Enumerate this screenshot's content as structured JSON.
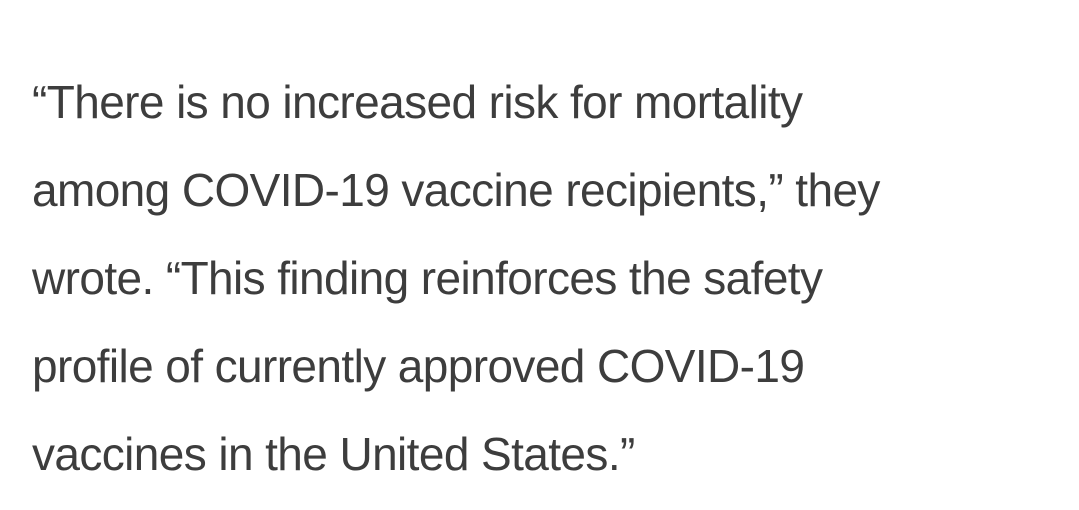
{
  "article": {
    "quote_lines": [
      "“There is no increased risk for mortality",
      "among COVID-19 vaccine recipients,” they",
      "wrote. “This finding reinforces the safety",
      "profile of currently approved COVID-19",
      "vaccines in the United States.”"
    ]
  }
}
